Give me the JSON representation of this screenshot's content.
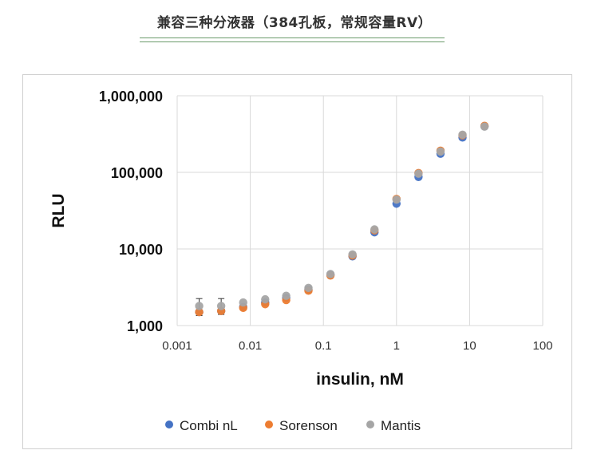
{
  "page": {
    "title": "兼容三种分液器（384孔板，常规容量RV）"
  },
  "chart_data": {
    "type": "scatter",
    "title": "兼容三种分液器（384孔板，常规容量RV）",
    "xlabel": "insulin, nM",
    "ylabel": "RLU",
    "xscale": "log",
    "yscale": "log",
    "xlim": [
      0.001,
      100
    ],
    "ylim": [
      1000,
      1000000
    ],
    "x_ticks": [
      "0.001",
      "0.01",
      "0.1",
      "1",
      "10",
      "100"
    ],
    "y_ticks": [
      "1,000",
      "10,000",
      "100,000",
      "1,000,000"
    ],
    "grid": true,
    "legend_position": "bottom",
    "x": [
      0.002,
      0.004,
      0.008,
      0.016,
      0.031,
      0.0625,
      0.125,
      0.25,
      0.5,
      1,
      2,
      4,
      8,
      16
    ],
    "series": [
      {
        "name": "Combi nL",
        "color": "#4472C4",
        "values": [
          1500,
          1550,
          1750,
          2000,
          2300,
          2950,
          4600,
          8000,
          16500,
          39000,
          87000,
          175000,
          285000,
          400000
        ]
      },
      {
        "name": "Sorenson",
        "color": "#ED7D31",
        "values": [
          1500,
          1550,
          1700,
          1900,
          2150,
          2850,
          4500,
          8200,
          17500,
          45000,
          98000,
          192000,
          305000,
          405000
        ]
      },
      {
        "name": "Mantis",
        "color": "#A5A5A5",
        "values": [
          1800,
          1800,
          2000,
          2200,
          2450,
          3100,
          4700,
          8500,
          18000,
          44000,
          96000,
          187000,
          310000,
          395000
        ]
      }
    ]
  }
}
